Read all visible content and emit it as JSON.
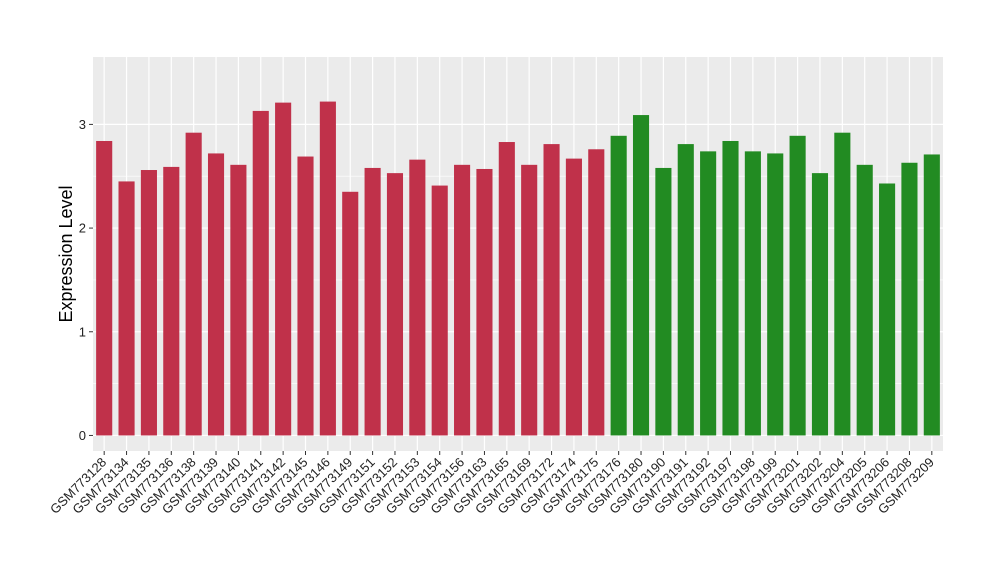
{
  "chart_data": {
    "type": "bar",
    "ylabel": "Expression Level",
    "ylim": [
      -0.15,
      3.65
    ],
    "yticks": [
      0,
      1,
      2,
      3
    ],
    "grid": true,
    "categories": [
      "GSM773128",
      "GSM773134",
      "GSM773135",
      "GSM773136",
      "GSM773138",
      "GSM773139",
      "GSM773140",
      "GSM773141",
      "GSM773142",
      "GSM773145",
      "GSM773146",
      "GSM773149",
      "GSM773151",
      "GSM773152",
      "GSM773153",
      "GSM773154",
      "GSM773156",
      "GSM773163",
      "GSM773165",
      "GSM773169",
      "GSM773172",
      "GSM773174",
      "GSM773175",
      "GSM773176",
      "GSM773180",
      "GSM773190",
      "GSM773191",
      "GSM773192",
      "GSM773197",
      "GSM773198",
      "GSM773199",
      "GSM773201",
      "GSM773202",
      "GSM773204",
      "GSM773205",
      "GSM773206",
      "GSM773208",
      "GSM773209"
    ],
    "values": [
      2.84,
      2.45,
      2.56,
      2.59,
      2.92,
      2.72,
      2.61,
      3.13,
      3.21,
      2.69,
      3.22,
      2.35,
      2.58,
      2.53,
      2.66,
      2.41,
      2.61,
      2.57,
      2.83,
      2.61,
      2.81,
      2.67,
      2.76,
      2.89,
      3.09,
      2.58,
      2.81,
      2.74,
      2.84,
      2.74,
      2.72,
      2.89,
      2.53,
      2.92,
      2.61,
      2.43,
      2.63,
      2.71
    ],
    "colors": [
      "#C0314A",
      "#C0314A",
      "#C0314A",
      "#C0314A",
      "#C0314A",
      "#C0314A",
      "#C0314A",
      "#C0314A",
      "#C0314A",
      "#C0314A",
      "#C0314A",
      "#C0314A",
      "#C0314A",
      "#C0314A",
      "#C0314A",
      "#C0314A",
      "#C0314A",
      "#C0314A",
      "#C0314A",
      "#C0314A",
      "#C0314A",
      "#C0314A",
      "#C0314A",
      "#228B22",
      "#228B22",
      "#228B22",
      "#228B22",
      "#228B22",
      "#228B22",
      "#228B22",
      "#228B22",
      "#228B22",
      "#228B22",
      "#228B22",
      "#228B22",
      "#228B22",
      "#228B22",
      "#228B22"
    ],
    "panel_background": "#EBEBEB",
    "grid_color": "#FFFFFF"
  }
}
